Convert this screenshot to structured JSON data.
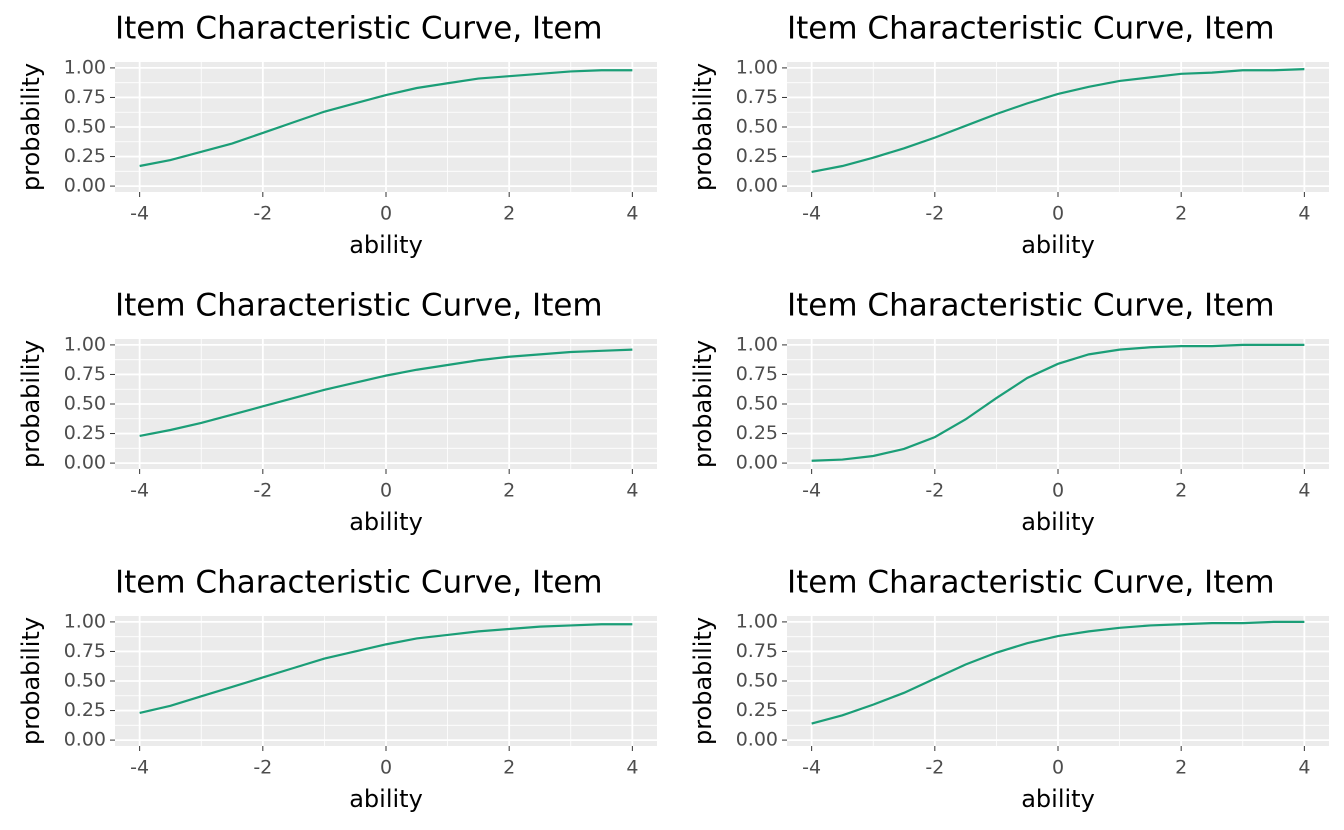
{
  "chart_data": [
    {
      "type": "line",
      "title": "Item Characteristic Curve, Item",
      "xlabel": "ability",
      "ylabel": "probability",
      "x": [
        -4,
        -3.5,
        -3,
        -2.5,
        -2,
        -1.5,
        -1,
        -0.5,
        0,
        0.5,
        1,
        1.5,
        2,
        2.5,
        3,
        3.5,
        4
      ],
      "values": [
        0.17,
        0.22,
        0.29,
        0.36,
        0.45,
        0.54,
        0.63,
        0.7,
        0.77,
        0.83,
        0.87,
        0.91,
        0.93,
        0.95,
        0.97,
        0.98,
        0.98
      ],
      "color": "#1b9e77",
      "xlim": [
        -4.4,
        4.4
      ],
      "ylim": [
        -0.05,
        1.05
      ],
      "xticks": [
        -4,
        -2,
        0,
        2,
        4
      ],
      "yticks": [
        {
          "value": 0,
          "label": "0.00"
        },
        {
          "value": 0.25,
          "label": "0.25"
        },
        {
          "value": 0.5,
          "label": "0.50"
        },
        {
          "value": 0.75,
          "label": "0.75"
        },
        {
          "value": 1,
          "label": "1.00"
        }
      ],
      "grid": true
    },
    {
      "type": "line",
      "title": "Item Characteristic Curve, Item",
      "xlabel": "ability",
      "ylabel": "probability",
      "x": [
        -4,
        -3.5,
        -3,
        -2.5,
        -2,
        -1.5,
        -1,
        -0.5,
        0,
        0.5,
        1,
        1.5,
        2,
        2.5,
        3,
        3.5,
        4
      ],
      "values": [
        0.12,
        0.17,
        0.24,
        0.32,
        0.41,
        0.51,
        0.61,
        0.7,
        0.78,
        0.84,
        0.89,
        0.92,
        0.95,
        0.96,
        0.98,
        0.98,
        0.99
      ],
      "color": "#1b9e77",
      "xlim": [
        -4.4,
        4.4
      ],
      "ylim": [
        -0.05,
        1.05
      ],
      "xticks": [
        -4,
        -2,
        0,
        2,
        4
      ],
      "yticks": [
        {
          "value": 0,
          "label": "0.00"
        },
        {
          "value": 0.25,
          "label": "0.25"
        },
        {
          "value": 0.5,
          "label": "0.50"
        },
        {
          "value": 0.75,
          "label": "0.75"
        },
        {
          "value": 1,
          "label": "1.00"
        }
      ],
      "grid": true
    },
    {
      "type": "line",
      "title": "Item Characteristic Curve, Item",
      "xlabel": "ability",
      "ylabel": "probability",
      "x": [
        -4,
        -3.5,
        -3,
        -2.5,
        -2,
        -1.5,
        -1,
        -0.5,
        0,
        0.5,
        1,
        1.5,
        2,
        2.5,
        3,
        3.5,
        4
      ],
      "values": [
        0.23,
        0.28,
        0.34,
        0.41,
        0.48,
        0.55,
        0.62,
        0.68,
        0.74,
        0.79,
        0.83,
        0.87,
        0.9,
        0.92,
        0.94,
        0.95,
        0.96
      ],
      "color": "#1b9e77",
      "xlim": [
        -4.4,
        4.4
      ],
      "ylim": [
        -0.05,
        1.05
      ],
      "xticks": [
        -4,
        -2,
        0,
        2,
        4
      ],
      "yticks": [
        {
          "value": 0,
          "label": "0.00"
        },
        {
          "value": 0.25,
          "label": "0.25"
        },
        {
          "value": 0.5,
          "label": "0.50"
        },
        {
          "value": 0.75,
          "label": "0.75"
        },
        {
          "value": 1,
          "label": "1.00"
        }
      ],
      "grid": true
    },
    {
      "type": "line",
      "title": "Item Characteristic Curve, Item",
      "xlabel": "ability",
      "ylabel": "probability",
      "x": [
        -4,
        -3.5,
        -3,
        -2.5,
        -2,
        -1.5,
        -1,
        -0.5,
        0,
        0.5,
        1,
        1.5,
        2,
        2.5,
        3,
        3.5,
        4
      ],
      "values": [
        0.02,
        0.03,
        0.06,
        0.12,
        0.22,
        0.37,
        0.55,
        0.72,
        0.84,
        0.92,
        0.96,
        0.98,
        0.99,
        0.99,
        1.0,
        1.0,
        1.0
      ],
      "color": "#1b9e77",
      "xlim": [
        -4.4,
        4.4
      ],
      "ylim": [
        -0.05,
        1.05
      ],
      "xticks": [
        -4,
        -2,
        0,
        2,
        4
      ],
      "yticks": [
        {
          "value": 0,
          "label": "0.00"
        },
        {
          "value": 0.25,
          "label": "0.25"
        },
        {
          "value": 0.5,
          "label": "0.50"
        },
        {
          "value": 0.75,
          "label": "0.75"
        },
        {
          "value": 1,
          "label": "1.00"
        }
      ],
      "grid": true
    },
    {
      "type": "line",
      "title": "Item Characteristic Curve, Item",
      "xlabel": "ability",
      "ylabel": "probability",
      "x": [
        -4,
        -3.5,
        -3,
        -2.5,
        -2,
        -1.5,
        -1,
        -0.5,
        0,
        0.5,
        1,
        1.5,
        2,
        2.5,
        3,
        3.5,
        4
      ],
      "values": [
        0.23,
        0.29,
        0.37,
        0.45,
        0.53,
        0.61,
        0.69,
        0.75,
        0.81,
        0.86,
        0.89,
        0.92,
        0.94,
        0.96,
        0.97,
        0.98,
        0.98
      ],
      "color": "#1b9e77",
      "xlim": [
        -4.4,
        4.4
      ],
      "ylim": [
        -0.05,
        1.05
      ],
      "xticks": [
        -4,
        -2,
        0,
        2,
        4
      ],
      "yticks": [
        {
          "value": 0,
          "label": "0.00"
        },
        {
          "value": 0.25,
          "label": "0.25"
        },
        {
          "value": 0.5,
          "label": "0.50"
        },
        {
          "value": 0.75,
          "label": "0.75"
        },
        {
          "value": 1,
          "label": "1.00"
        }
      ],
      "grid": true
    },
    {
      "type": "line",
      "title": "Item Characteristic Curve, Item",
      "xlabel": "ability",
      "ylabel": "probability",
      "x": [
        -4,
        -3.5,
        -3,
        -2.5,
        -2,
        -1.5,
        -1,
        -0.5,
        0,
        0.5,
        1,
        1.5,
        2,
        2.5,
        3,
        3.5,
        4
      ],
      "values": [
        0.14,
        0.21,
        0.3,
        0.4,
        0.52,
        0.64,
        0.74,
        0.82,
        0.88,
        0.92,
        0.95,
        0.97,
        0.98,
        0.99,
        0.99,
        1.0,
        1.0
      ],
      "color": "#1b9e77",
      "xlim": [
        -4.4,
        4.4
      ],
      "ylim": [
        -0.05,
        1.05
      ],
      "xticks": [
        -4,
        -2,
        0,
        2,
        4
      ],
      "yticks": [
        {
          "value": 0,
          "label": "0.00"
        },
        {
          "value": 0.25,
          "label": "0.25"
        },
        {
          "value": 0.5,
          "label": "0.50"
        },
        {
          "value": 0.75,
          "label": "0.75"
        },
        {
          "value": 1,
          "label": "1.00"
        }
      ],
      "grid": true
    }
  ]
}
